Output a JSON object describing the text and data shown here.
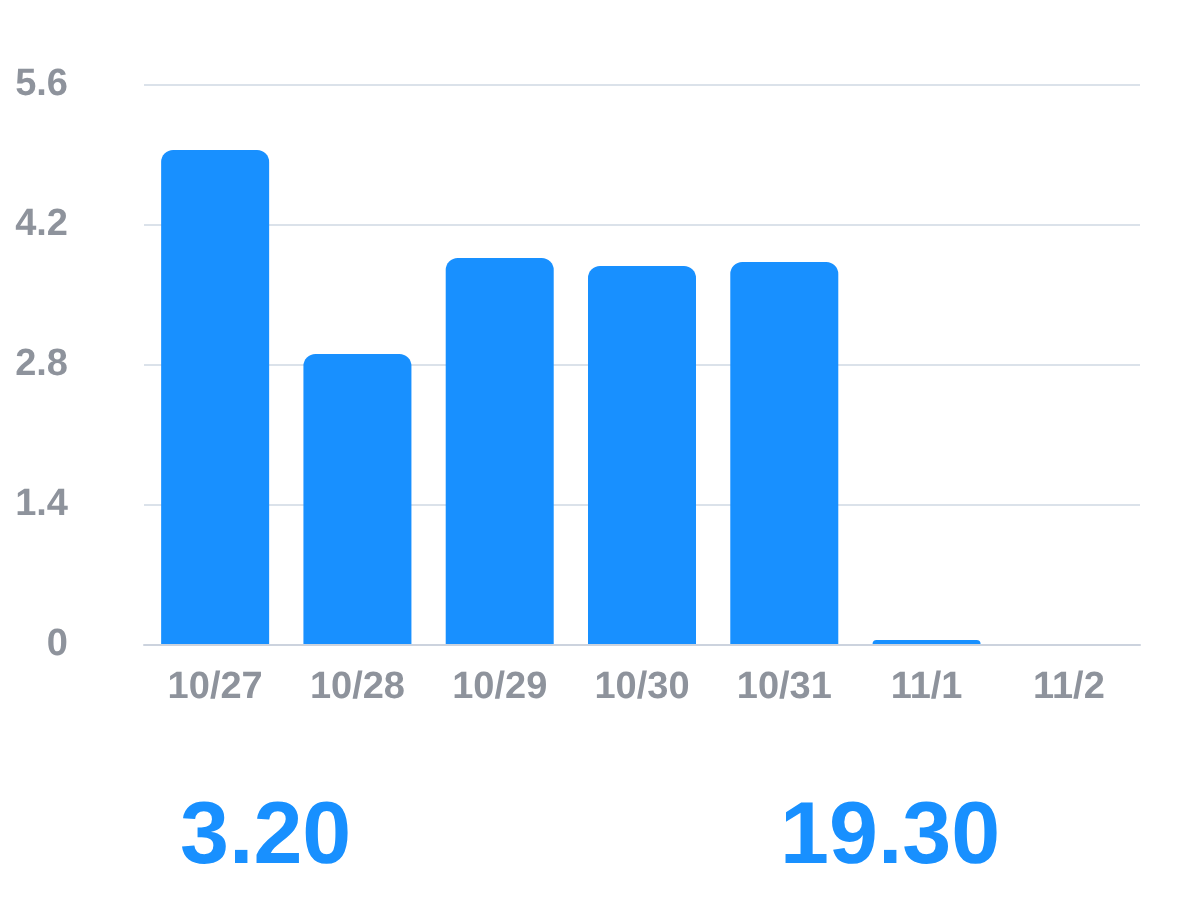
{
  "chart_data": {
    "type": "bar",
    "categories": [
      "10/27",
      "10/28",
      "10/29",
      "10/30",
      "10/31",
      "11/1",
      "11/2"
    ],
    "values": [
      4.94,
      2.9,
      3.86,
      3.78,
      3.82,
      0.04,
      0
    ],
    "color": "#1890ff",
    "ylim": [
      0,
      5.6
    ],
    "yticks": [
      0,
      1.4,
      2.8,
      4.2,
      5.6
    ],
    "grid": "y",
    "annotations": [
      "3.20",
      "19.30"
    ]
  }
}
